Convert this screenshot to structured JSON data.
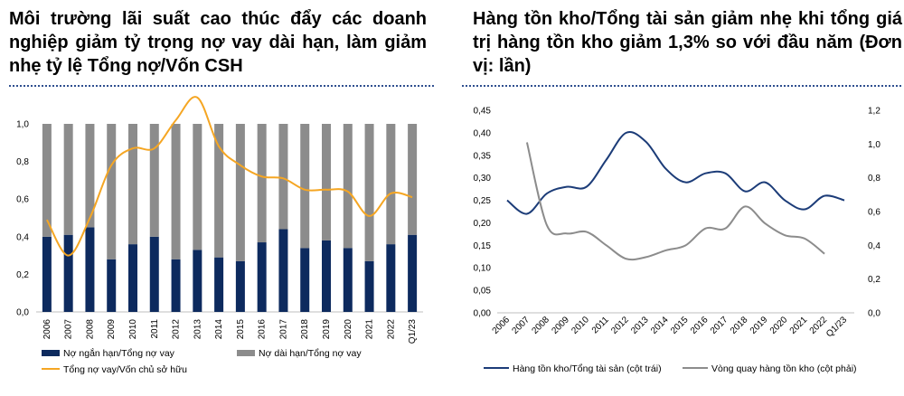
{
  "left_panel": {
    "title": "Môi trường lãi suất cao thúc đẩy các doanh nghiệp giảm tỷ trọng nợ vay dài hạn, làm giảm nhẹ tỷ lệ Tổng nợ/Vốn CSH"
  },
  "right_panel": {
    "title": "Hàng tồn kho/Tổng tài sản giảm nhẹ khi tổng giá trị hàng tồn kho giảm 1,3% so với đầu năm (Đơn vị: lần)"
  },
  "colors": {
    "short_debt": "#0d2a5e",
    "long_debt": "#8c8c8c",
    "debt_equity": "#f5a623",
    "inventory_assets": "#1c3c78",
    "inventory_turnover": "#8c8c8c",
    "divider": "#2f4f8f"
  },
  "chart_data": [
    {
      "type": "bar",
      "stacked": true,
      "categories": [
        "2006",
        "2007",
        "2008",
        "2009",
        "2010",
        "2011",
        "2012",
        "2013",
        "2014",
        "2015",
        "2016",
        "2017",
        "2018",
        "2019",
        "2020",
        "2021",
        "2022",
        "Q1/23"
      ],
      "series": [
        {
          "name": "Nợ ngắn hạn/Tổng nợ vay",
          "type": "bar",
          "values": [
            0.4,
            0.41,
            0.45,
            0.28,
            0.36,
            0.4,
            0.28,
            0.33,
            0.29,
            0.27,
            0.37,
            0.44,
            0.34,
            0.38,
            0.34,
            0.27,
            0.36,
            0.41
          ]
        },
        {
          "name": "Nợ dài hạn/Tổng nợ vay",
          "type": "bar",
          "values": [
            0.6,
            0.59,
            0.55,
            0.72,
            0.64,
            0.6,
            0.72,
            0.67,
            0.71,
            0.73,
            0.63,
            0.56,
            0.66,
            0.62,
            0.66,
            0.73,
            0.64,
            0.59
          ]
        },
        {
          "name": "Tổng nợ vay/Vốn chủ sở hữu",
          "type": "line",
          "values": [
            0.49,
            0.3,
            0.5,
            0.78,
            0.87,
            0.87,
            1.02,
            1.14,
            0.88,
            0.78,
            0.72,
            0.71,
            0.65,
            0.65,
            0.64,
            0.51,
            0.63,
            0.61
          ]
        }
      ],
      "ylim": [
        0,
        1.0
      ],
      "yticks": [
        "0,0",
        "0,2",
        "0,4",
        "0,6",
        "0,8",
        "1,0"
      ],
      "grid": false,
      "legend": "bottom"
    },
    {
      "type": "line",
      "x": [
        "2006",
        "2007",
        "2008",
        "2009",
        "2010",
        "2011",
        "2012",
        "2013",
        "2014",
        "2015",
        "2016",
        "2017",
        "2018",
        "2019",
        "2020",
        "2021",
        "2022",
        "Q1/23"
      ],
      "series": [
        {
          "name": "Hàng tồn kho/Tổng tài sản (cột trái)",
          "axis": "left",
          "values": [
            0.25,
            0.22,
            0.265,
            0.28,
            0.28,
            0.34,
            0.4,
            0.38,
            0.32,
            0.29,
            0.31,
            0.31,
            0.27,
            0.29,
            0.25,
            0.23,
            0.26,
            0.25
          ]
        },
        {
          "name": "Vòng quay hàng tồn kho (cột phải)",
          "axis": "right",
          "values": [
            null,
            1.01,
            0.52,
            0.47,
            0.48,
            0.4,
            0.32,
            0.33,
            0.37,
            0.4,
            0.5,
            0.5,
            0.63,
            0.53,
            0.46,
            0.44,
            0.35,
            null
          ]
        }
      ],
      "ylim_left": [
        0,
        0.45
      ],
      "ylim_right": [
        0,
        1.2
      ],
      "yticks_left": [
        "0,00",
        "0,05",
        "0,10",
        "0,15",
        "0,20",
        "0,25",
        "0,30",
        "0,35",
        "0,40",
        "0,45"
      ],
      "yticks_right": [
        "0,0",
        "0,2",
        "0,4",
        "0,6",
        "0,8",
        "1,0",
        "1,2"
      ],
      "grid": false,
      "legend": "bottom"
    }
  ]
}
